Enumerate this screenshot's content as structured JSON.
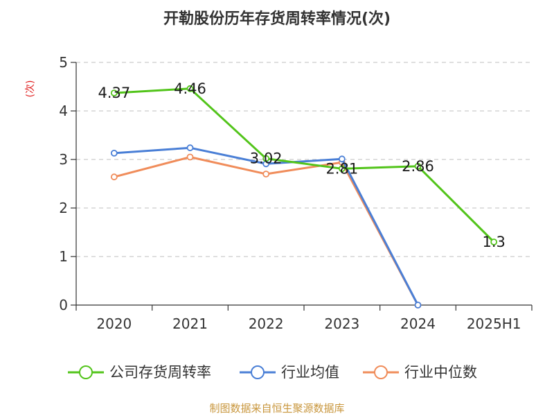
{
  "chart_data": {
    "type": "line",
    "title": "开勒股份历年存货周转率情况(次)",
    "ylabel": "(次)",
    "xlabel": "",
    "categories": [
      "2020",
      "2021",
      "2022",
      "2023",
      "2024",
      "2025H1"
    ],
    "ylim": [
      0,
      5
    ],
    "yticks": [
      0,
      1,
      2,
      3,
      4,
      5
    ],
    "grid": true,
    "legend_position": "bottom",
    "series": [
      {
        "name": "公司存货周转率",
        "color": "#52c41a",
        "values": [
          4.37,
          4.46,
          3.02,
          2.81,
          2.86,
          1.3
        ],
        "labels": [
          "4.37",
          "4.46",
          "3.02",
          "2.81",
          "2.86",
          "1.3"
        ]
      },
      {
        "name": "行业均值",
        "color": "#4a7fd6",
        "values": [
          3.13,
          3.24,
          2.91,
          3.01,
          0,
          null
        ]
      },
      {
        "name": "行业中位数",
        "color": "#f08c5a",
        "values": [
          2.64,
          3.05,
          2.7,
          2.94,
          0,
          null
        ]
      }
    ]
  },
  "source": "制图数据来自恒生聚源数据库",
  "colors": {
    "source": "#c8963c",
    "ylabel": "#e02020",
    "grid": "#cccccc",
    "axis": "#333333"
  }
}
